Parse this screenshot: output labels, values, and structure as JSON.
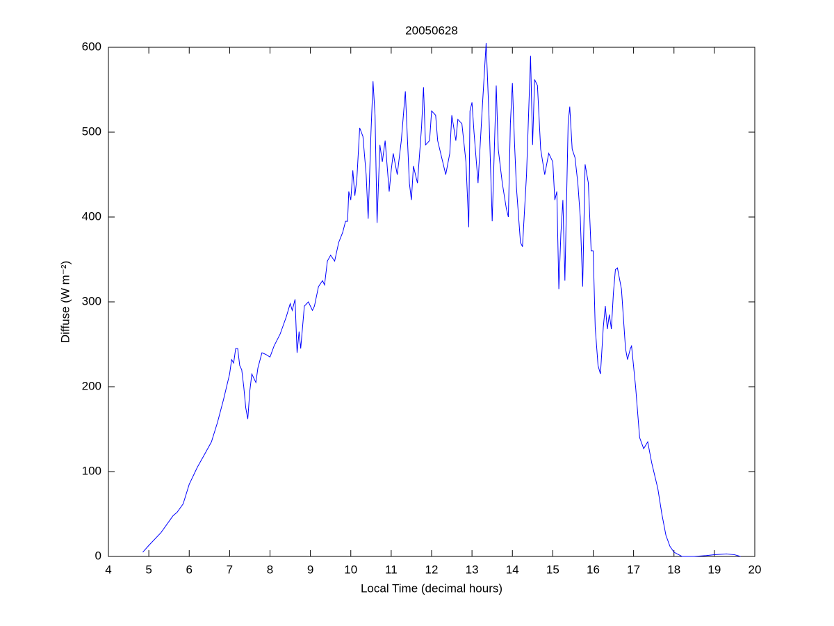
{
  "chart_data": {
    "type": "line",
    "title": "20050628",
    "xlabel": "Local Time (decimal hours)",
    "ylabel": "Diffuse (W m⁻²)",
    "xlim": [
      4,
      20
    ],
    "xticks": [
      4,
      5,
      6,
      7,
      8,
      9,
      10,
      11,
      12,
      13,
      14,
      15,
      16,
      17,
      18,
      19,
      20
    ],
    "ylim": [
      0,
      600
    ],
    "yticks": [
      0,
      100,
      200,
      300,
      400,
      500,
      600
    ],
    "grid": false,
    "series": [
      {
        "color": "#0000ff",
        "x": [
          4.85,
          5.0,
          5.3,
          5.6,
          5.7,
          5.85,
          6.0,
          6.2,
          6.4,
          6.55,
          6.7,
          6.85,
          7.0,
          7.05,
          7.1,
          7.15,
          7.2,
          7.25,
          7.3,
          7.35,
          7.4,
          7.45,
          7.5,
          7.55,
          7.65,
          7.7,
          7.8,
          7.9,
          8.0,
          8.1,
          8.25,
          8.4,
          8.5,
          8.55,
          8.62,
          8.67,
          8.72,
          8.76,
          8.85,
          8.95,
          9.05,
          9.1,
          9.2,
          9.3,
          9.35,
          9.42,
          9.5,
          9.6,
          9.7,
          9.8,
          9.87,
          9.92,
          9.95,
          10.0,
          10.05,
          10.1,
          10.15,
          10.22,
          10.3,
          10.38,
          10.43,
          10.5,
          10.55,
          10.6,
          10.65,
          10.72,
          10.78,
          10.85,
          10.95,
          11.0,
          11.05,
          11.15,
          11.25,
          11.35,
          11.45,
          11.5,
          11.55,
          11.65,
          11.75,
          11.8,
          11.85,
          11.95,
          12.0,
          12.1,
          12.15,
          12.3,
          12.35,
          12.45,
          12.5,
          12.6,
          12.65,
          12.75,
          12.85,
          12.92,
          12.95,
          13.0,
          13.05,
          13.15,
          13.25,
          13.35,
          13.42,
          13.5,
          13.6,
          13.65,
          13.75,
          13.85,
          13.9,
          13.95,
          14.0,
          14.05,
          14.1,
          14.2,
          14.25,
          14.35,
          14.45,
          14.5,
          14.55,
          14.62,
          14.7,
          14.8,
          14.9,
          15.0,
          15.05,
          15.1,
          15.15,
          15.2,
          15.25,
          15.3,
          15.38,
          15.42,
          15.48,
          15.55,
          15.62,
          15.68,
          15.74,
          15.8,
          15.88,
          15.95,
          16.0,
          16.05,
          16.12,
          16.18,
          16.25,
          16.3,
          16.35,
          16.4,
          16.45,
          16.5,
          16.55,
          16.6,
          16.7,
          16.8,
          16.85,
          16.92,
          16.95,
          17.05,
          17.15,
          17.25,
          17.35,
          17.45,
          17.6,
          17.7,
          17.8,
          17.9,
          18.0,
          18.2,
          18.5,
          18.8,
          19.0,
          19.3,
          19.5,
          19.65
        ],
        "values": [
          5,
          13,
          28,
          48,
          52,
          62,
          85,
          105,
          122,
          135,
          158,
          185,
          215,
          232,
          228,
          245,
          245,
          225,
          220,
          200,
          175,
          162,
          195,
          215,
          205,
          222,
          240,
          238,
          235,
          248,
          262,
          282,
          298,
          290,
          303,
          240,
          265,
          245,
          295,
          300,
          290,
          295,
          318,
          325,
          320,
          348,
          355,
          348,
          370,
          382,
          395,
          395,
          430,
          420,
          455,
          425,
          445,
          505,
          495,
          450,
          398,
          500,
          560,
          520,
          393,
          485,
          465,
          490,
          430,
          455,
          475,
          450,
          490,
          548,
          440,
          420,
          460,
          440,
          505,
          553,
          485,
          490,
          525,
          520,
          490,
          460,
          450,
          475,
          520,
          490,
          515,
          510,
          465,
          388,
          525,
          535,
          500,
          440,
          525,
          605,
          520,
          395,
          555,
          480,
          440,
          410,
          400,
          510,
          558,
          490,
          435,
          370,
          365,
          450,
          590,
          485,
          562,
          555,
          480,
          450,
          475,
          465,
          420,
          430,
          315,
          380,
          420,
          325,
          510,
          530,
          480,
          470,
          440,
          400,
          318,
          462,
          440,
          360,
          360,
          270,
          225,
          215,
          270,
          295,
          268,
          285,
          268,
          310,
          338,
          340,
          315,
          245,
          232,
          245,
          248,
          200,
          140,
          127,
          135,
          110,
          80,
          50,
          25,
          12,
          5,
          0,
          0,
          1,
          2,
          3,
          2,
          0
        ]
      }
    ]
  }
}
